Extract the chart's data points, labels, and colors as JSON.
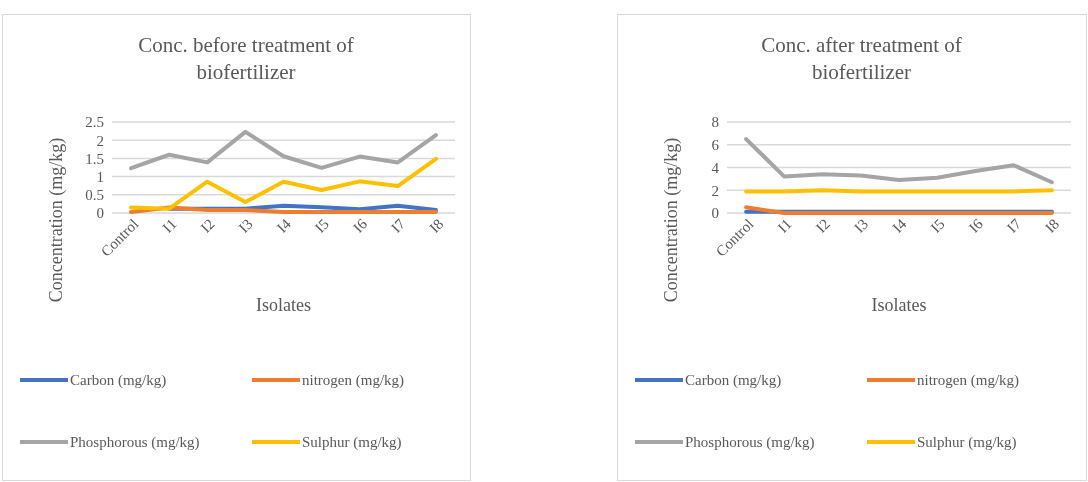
{
  "chart_data": [
    {
      "type": "line",
      "title": "Conc. before treatment of biofertilizer",
      "xlabel": "Isolates",
      "ylabel": "Concentration (mg/kg)",
      "categories": [
        "Control",
        "I1",
        "I2",
        "I3",
        "I4",
        "I5",
        "I6",
        "I7",
        "I8"
      ],
      "ylim": [
        0,
        2.5
      ],
      "yticks": [
        0,
        0.5,
        1,
        1.5,
        2,
        2.5
      ],
      "grid": "y",
      "legend": "bottom",
      "series": [
        {
          "name": "Carbon (mg/kg)",
          "color": "#4472c4",
          "values": [
            null,
            0.12,
            0.12,
            0.12,
            0.2,
            0.16,
            0.1,
            0.2,
            0.08
          ]
        },
        {
          "name": "nitrogen (mg/kg)",
          "color": "#ed7d31",
          "values": [
            0.03,
            0.15,
            0.08,
            0.08,
            0.03,
            0.03,
            0.03,
            0.03,
            0.03
          ]
        },
        {
          "name": "Phosphorous (mg/kg)",
          "color": "#a5a5a5",
          "values": [
            1.23,
            1.6,
            1.39,
            2.23,
            1.56,
            1.24,
            1.55,
            1.39,
            2.14
          ]
        },
        {
          "name": "Sulphur (mg/kg)",
          "color": "#ffc000",
          "values": [
            0.15,
            0.12,
            0.86,
            0.3,
            0.86,
            0.63,
            0.87,
            0.74,
            1.49
          ]
        }
      ]
    },
    {
      "type": "line",
      "title": "Conc. after treatment of biofertilizer",
      "xlabel": "Isolates",
      "ylabel": "Concentration (mg/kg)",
      "categories": [
        "Control",
        "I1",
        "I2",
        "I3",
        "I4",
        "I5",
        "I6",
        "I7",
        "I8"
      ],
      "ylim": [
        0,
        8
      ],
      "yticks": [
        0,
        2,
        4,
        6,
        8
      ],
      "grid": "y",
      "legend": "bottom",
      "series": [
        {
          "name": "Carbon (mg/kg)",
          "color": "#4472c4",
          "values": [
            0.1,
            0.1,
            0.1,
            0.1,
            0.1,
            0.1,
            0.1,
            0.1,
            0.1
          ]
        },
        {
          "name": "nitrogen (mg/kg)",
          "color": "#ed7d31",
          "values": [
            0.5,
            0,
            0,
            0,
            0,
            0,
            0,
            0,
            0
          ]
        },
        {
          "name": "Phosphorous (mg/kg)",
          "color": "#a5a5a5",
          "values": [
            6.5,
            3.2,
            3.4,
            3.3,
            2.9,
            3.1,
            3.7,
            4.2,
            2.7
          ]
        },
        {
          "name": "Sulphur (mg/kg)",
          "color": "#ffc000",
          "values": [
            1.9,
            1.9,
            2,
            1.9,
            1.9,
            1.9,
            1.9,
            1.9,
            2
          ]
        }
      ]
    }
  ]
}
